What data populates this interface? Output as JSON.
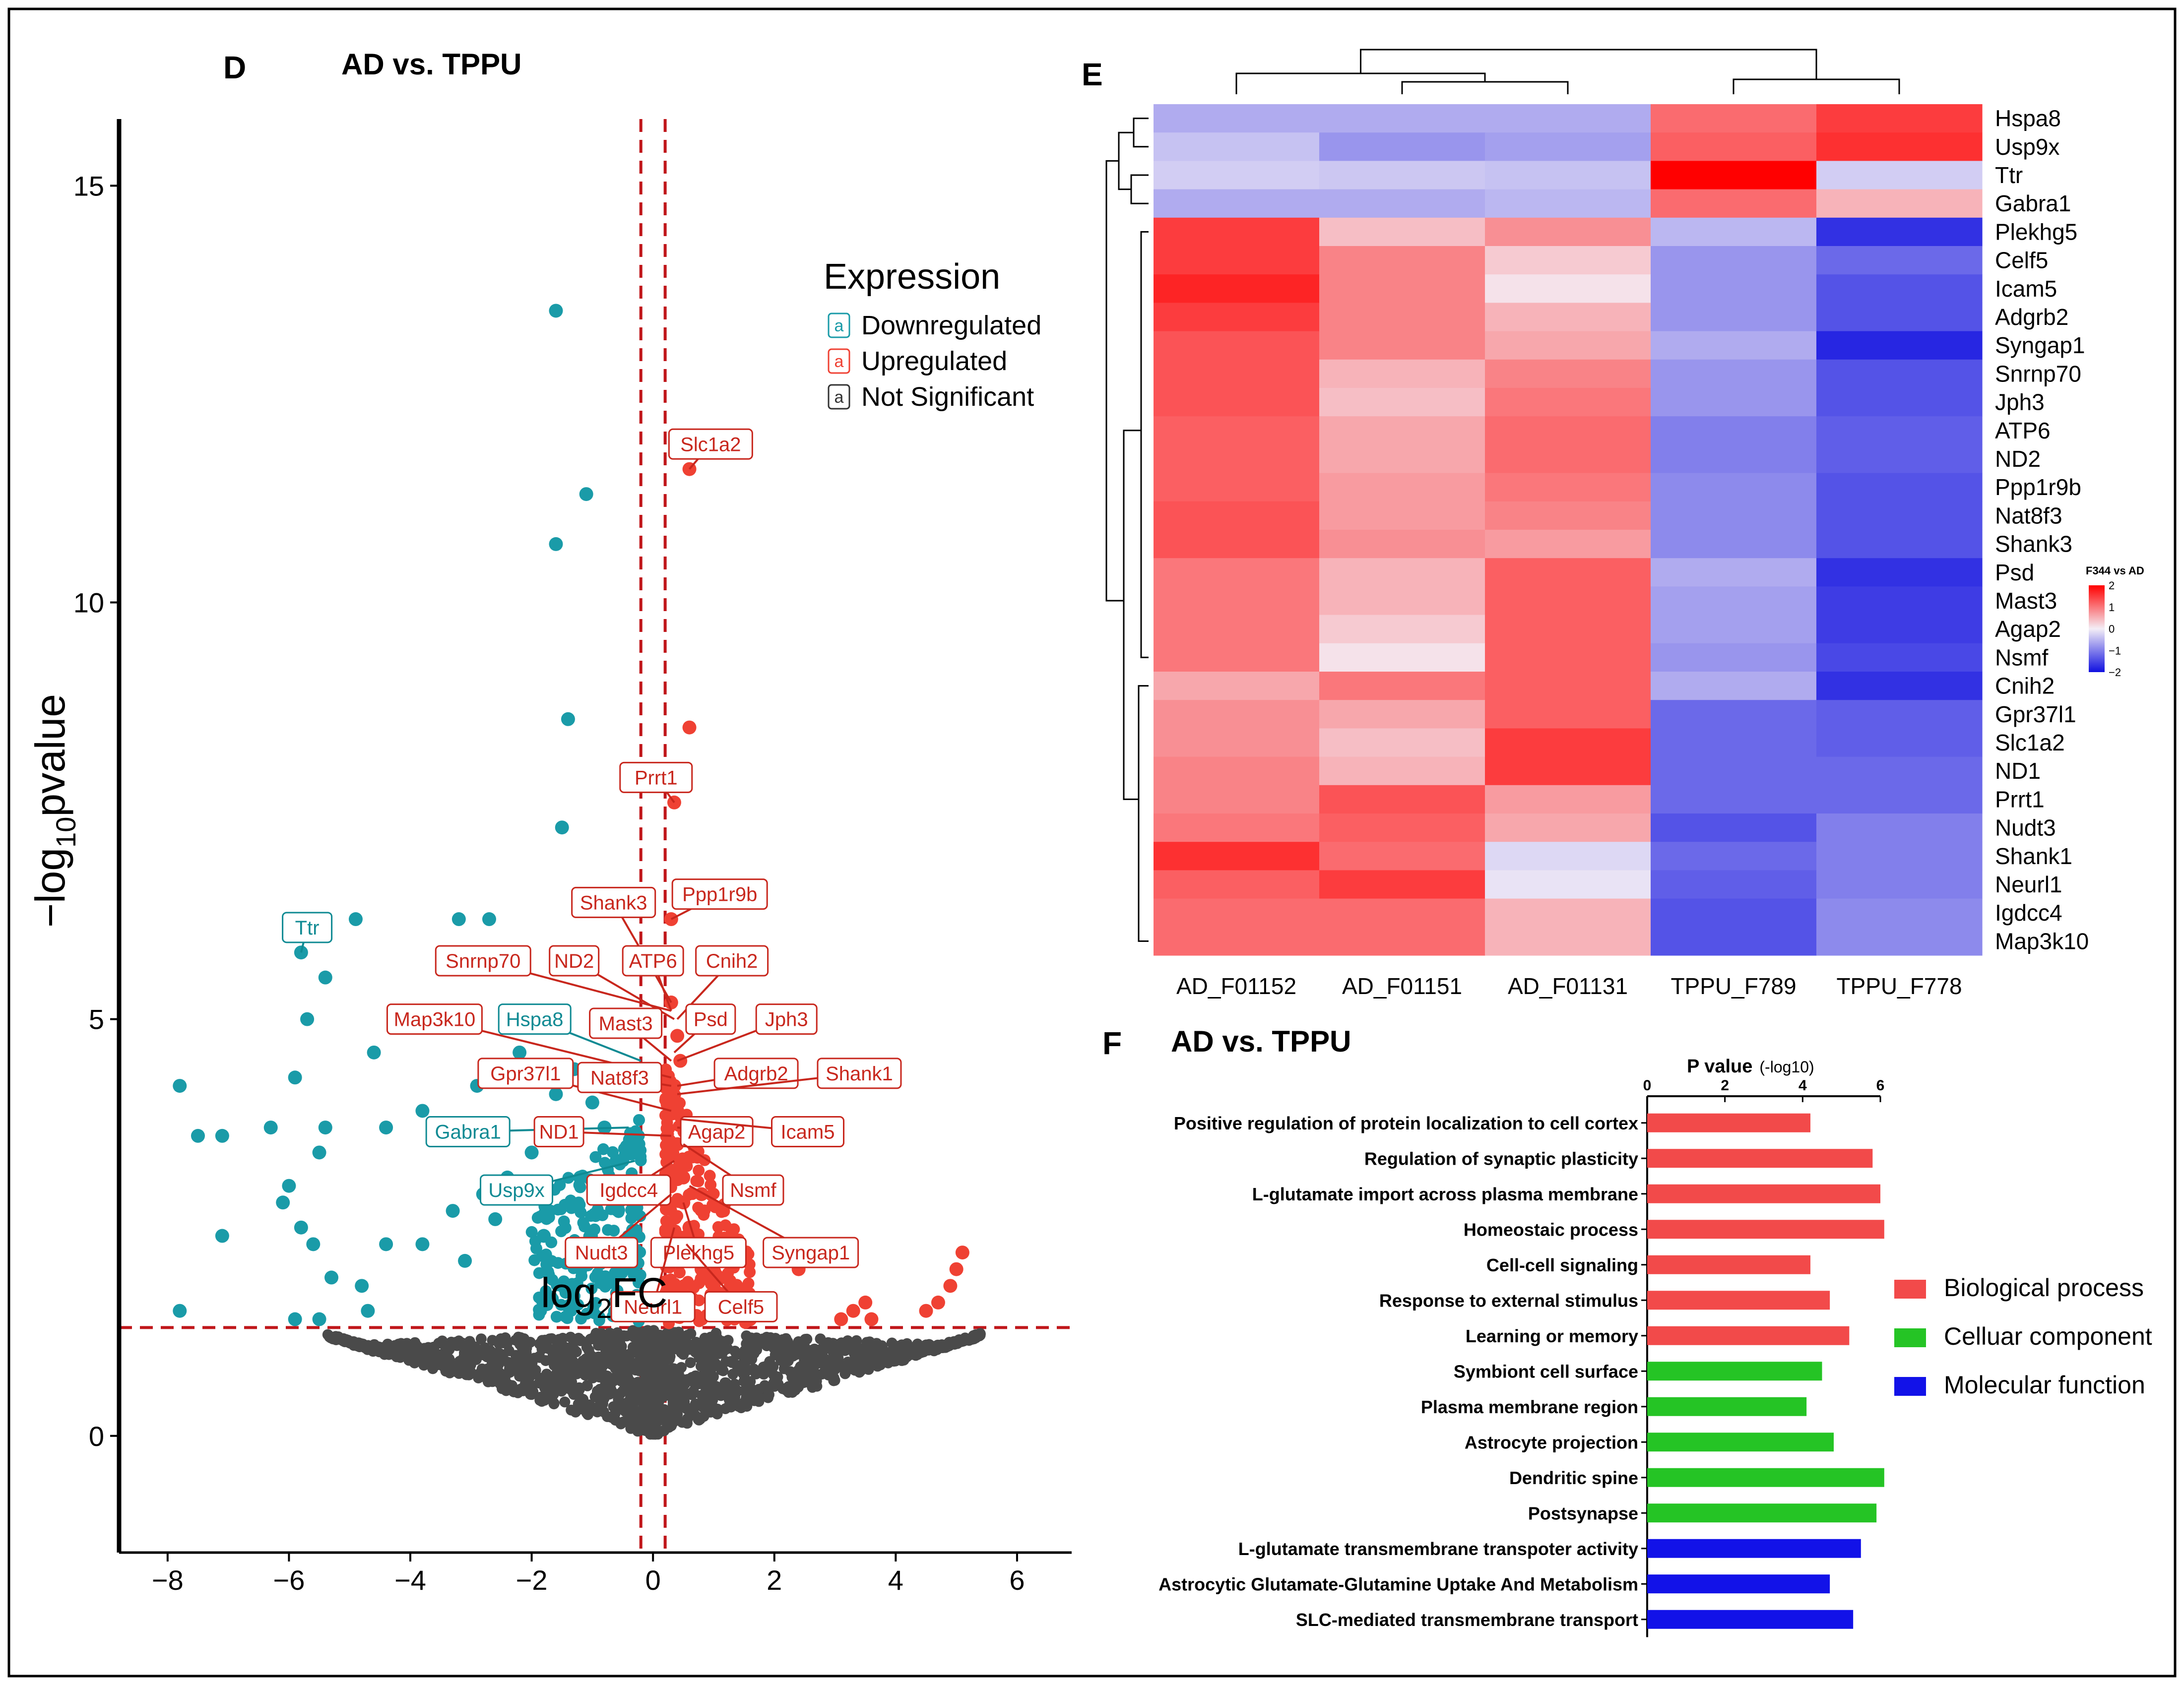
{
  "colors": {
    "down": "#1a9ba8",
    "up": "#ef4133",
    "ns": "#4a4a4a",
    "label_up": "#c8271d",
    "label_down": "#0f8a93",
    "bp": "#f24a4a",
    "cc": "#25c425",
    "mf": "#1212e8",
    "heat_hi": "#ff0000",
    "heat_mid": "#f4eef6",
    "heat_lo": "#1010e0"
  },
  "chart_data": [
    {
      "panel": "D",
      "type": "scatter",
      "title": "AD vs. TPPU",
      "xlabel_main": "log",
      "xlabel_sub": "2",
      "xlabel_tail": "FC",
      "ylabel_head": "−log",
      "ylabel_sub": "10",
      "ylabel_tail": "pvalue",
      "xlim": [
        -8.8,
        6.9
      ],
      "ylim": [
        -1.4,
        15.8
      ],
      "xticks": [
        -8,
        -6,
        -4,
        -2,
        0,
        2,
        4,
        6
      ],
      "yticks": [
        0,
        5,
        10,
        15
      ],
      "x_tick_labels": [
        "−8",
        "−6",
        "−4",
        "−2",
        "0",
        "2",
        "4",
        "6"
      ],
      "y_tick_labels": [
        "0",
        "5",
        "10",
        "15"
      ],
      "vlines": [
        -0.2,
        0.2
      ],
      "hline": 1.3,
      "legend": {
        "title": "Expression",
        "key_glyph": "a",
        "items": [
          "Downregulated",
          "Upregulated",
          "Not Significant"
        ]
      },
      "down_points": [
        [
          -1.6,
          13.5
        ],
        [
          -1.6,
          10.7
        ],
        [
          -1.1,
          11.3
        ],
        [
          -1.4,
          8.6
        ],
        [
          -1.5,
          7.3
        ],
        [
          -5.8,
          5.8
        ],
        [
          -4.9,
          6.2
        ],
        [
          -5.7,
          5.0
        ],
        [
          -5.4,
          5.5
        ],
        [
          -3.2,
          6.2
        ],
        [
          -2.7,
          6.2
        ],
        [
          -4.6,
          4.6
        ],
        [
          -7.8,
          4.2
        ],
        [
          -7.5,
          3.6
        ],
        [
          -7.1,
          3.6
        ],
        [
          -6.3,
          3.7
        ],
        [
          -5.9,
          4.3
        ],
        [
          -5.4,
          3.7
        ],
        [
          -4.4,
          3.7
        ],
        [
          -3.8,
          3.9
        ],
        [
          -6.0,
          3.0
        ],
        [
          -5.5,
          3.4
        ],
        [
          -7.1,
          2.4
        ],
        [
          -6.1,
          2.8
        ],
        [
          -5.8,
          2.5
        ],
        [
          -5.6,
          2.3
        ],
        [
          -4.4,
          2.3
        ],
        [
          -3.8,
          2.3
        ],
        [
          -3.1,
          2.1
        ],
        [
          -5.3,
          1.9
        ],
        [
          -4.8,
          1.8
        ],
        [
          -5.9,
          1.4
        ],
        [
          -5.5,
          1.4
        ],
        [
          -4.7,
          1.5
        ],
        [
          -7.8,
          1.5
        ],
        [
          -3.3,
          2.7
        ],
        [
          -2.8,
          2.9
        ],
        [
          -2.4,
          3.1
        ],
        [
          -2.0,
          3.4
        ],
        [
          -1.6,
          4.1
        ],
        [
          -1.3,
          4.4
        ],
        [
          -1.0,
          4.0
        ],
        [
          -0.8,
          3.7
        ],
        [
          -0.6,
          3.3
        ],
        [
          -1.2,
          3.1
        ],
        [
          -2.2,
          4.6
        ],
        [
          -3.5,
          5.0
        ],
        [
          -2.9,
          4.2
        ],
        [
          -1.8,
          2.4
        ],
        [
          -2.6,
          2.6
        ]
      ],
      "up_points": [
        [
          0.6,
          11.6
        ],
        [
          0.6,
          8.5
        ],
        [
          0.35,
          7.6
        ],
        [
          0.3,
          6.2
        ],
        [
          0.3,
          5.2
        ],
        [
          0.4,
          4.8
        ],
        [
          0.45,
          4.5
        ],
        [
          0.35,
          4.2
        ],
        [
          0.4,
          3.9
        ],
        [
          0.4,
          3.5
        ],
        [
          0.5,
          3.1
        ],
        [
          0.5,
          2.8
        ],
        [
          0.6,
          2.5
        ],
        [
          0.7,
          2.2
        ],
        [
          0.8,
          2.0
        ],
        [
          1.0,
          1.8
        ],
        [
          1.1,
          1.6
        ],
        [
          1.3,
          1.5
        ],
        [
          1.6,
          1.4
        ],
        [
          2.4,
          2.0
        ],
        [
          3.1,
          1.4
        ],
        [
          3.3,
          1.5
        ],
        [
          3.5,
          1.6
        ],
        [
          3.6,
          1.4
        ],
        [
          4.5,
          1.5
        ],
        [
          4.7,
          1.6
        ],
        [
          4.9,
          1.8
        ],
        [
          5.0,
          2.0
        ],
        [
          5.1,
          2.2
        ],
        [
          0.8,
          2.9
        ]
      ],
      "labels": [
        {
          "text": "Slc1a2",
          "group": "up",
          "x": 0.95,
          "y": 11.9,
          "tx": 0.6,
          "ty": 11.6
        },
        {
          "text": "Prrt1",
          "group": "up",
          "x": 0.05,
          "y": 7.9,
          "tx": 0.35,
          "ty": 7.6
        },
        {
          "text": "Ppp1r9b",
          "group": "up",
          "x": 1.1,
          "y": 6.5,
          "tx": 0.3,
          "ty": 6.2
        },
        {
          "text": "Shank3",
          "group": "up",
          "x": -0.65,
          "y": 6.4,
          "tx": 0.3,
          "ty": 5.2
        },
        {
          "text": "Ttr",
          "group": "down",
          "x": -5.7,
          "y": 6.1,
          "tx": -5.8,
          "ty": 5.8
        },
        {
          "text": "Snrnp70",
          "group": "up",
          "x": -2.8,
          "y": 5.7,
          "tx": 0.3,
          "ty": 5.1
        },
        {
          "text": "ND2",
          "group": "up",
          "x": -1.3,
          "y": 5.7,
          "tx": 0.35,
          "ty": 5.0
        },
        {
          "text": "ATP6",
          "group": "up",
          "x": 0.0,
          "y": 5.7,
          "tx": 0.3,
          "ty": 5.1
        },
        {
          "text": "Cnih2",
          "group": "up",
          "x": 1.3,
          "y": 5.7,
          "tx": 0.4,
          "ty": 5.0
        },
        {
          "text": "Map3k10",
          "group": "up",
          "x": -3.6,
          "y": 5.0,
          "tx": 0.3,
          "ty": 4.3
        },
        {
          "text": "Hspa8",
          "group": "down",
          "x": -1.95,
          "y": 5.0,
          "tx": -0.2,
          "ty": 4.5
        },
        {
          "text": "Mast3",
          "group": "up",
          "x": -0.45,
          "y": 4.95,
          "tx": 0.3,
          "ty": 4.5
        },
        {
          "text": "Psd",
          "group": "up",
          "x": 0.95,
          "y": 5.0,
          "tx": 0.35,
          "ty": 4.6
        },
        {
          "text": "Jph3",
          "group": "up",
          "x": 2.2,
          "y": 5.0,
          "tx": 0.4,
          "ty": 4.5
        },
        {
          "text": "Gpr37l1",
          "group": "up",
          "x": -2.1,
          "y": 4.35,
          "tx": 0.3,
          "ty": 3.9
        },
        {
          "text": "Nat8f3",
          "group": "up",
          "x": -0.55,
          "y": 4.3,
          "tx": 0.3,
          "ty": 4.2
        },
        {
          "text": "Adgrb2",
          "group": "up",
          "x": 1.7,
          "y": 4.35,
          "tx": 0.4,
          "ty": 4.2
        },
        {
          "text": "Shank1",
          "group": "up",
          "x": 3.4,
          "y": 4.35,
          "tx": 0.4,
          "ty": 4.1
        },
        {
          "text": "Gabra1",
          "group": "down",
          "x": -3.05,
          "y": 3.65,
          "tx": -0.4,
          "ty": 3.7
        },
        {
          "text": "ND1",
          "group": "up",
          "x": -1.55,
          "y": 3.65,
          "tx": 0.3,
          "ty": 3.6
        },
        {
          "text": "Agap2",
          "group": "up",
          "x": 1.05,
          "y": 3.65,
          "tx": 0.4,
          "ty": 3.7
        },
        {
          "text": "Icam5",
          "group": "up",
          "x": 2.55,
          "y": 3.65,
          "tx": 0.45,
          "ty": 3.8
        },
        {
          "text": "Usp9x",
          "group": "down",
          "x": -2.25,
          "y": 2.95,
          "tx": -0.3,
          "ty": 3.3
        },
        {
          "text": "Igdcc4",
          "group": "up",
          "x": -0.4,
          "y": 2.95,
          "tx": 0.35,
          "ty": 3.3
        },
        {
          "text": "Nsmf",
          "group": "up",
          "x": 1.65,
          "y": 2.95,
          "tx": 0.5,
          "ty": 3.5
        },
        {
          "text": "Nudt3",
          "group": "up",
          "x": -0.85,
          "y": 2.2,
          "tx": 0.3,
          "ty": 2.9
        },
        {
          "text": "Plekhg5",
          "group": "up",
          "x": 0.75,
          "y": 2.2,
          "tx": 0.5,
          "ty": 2.8
        },
        {
          "text": "Syngap1",
          "group": "up",
          "x": 2.6,
          "y": 2.2,
          "tx": 0.6,
          "ty": 3.0
        },
        {
          "text": "Neurl1",
          "group": "up",
          "x": 0.0,
          "y": 1.55,
          "tx": 0.35,
          "ty": 2.5
        },
        {
          "text": "Celf5",
          "group": "up",
          "x": 1.45,
          "y": 1.55,
          "tx": 0.55,
          "ty": 2.3
        }
      ]
    },
    {
      "panel": "E",
      "type": "heatmap",
      "columns": [
        "AD_F01152",
        "AD_F01151",
        "AD_F01131",
        "TPPU_F789",
        "TPPU_F778"
      ],
      "rows": [
        "Hspa8",
        "Usp9x",
        "Ttr",
        "Gabra1",
        "Plekhg5",
        "Celf5",
        "Icam5",
        "Adgrb2",
        "Syngap1",
        "Snrnp70",
        "Jph3",
        "ATP6",
        "ND2",
        "Ppp1r9b",
        "Nat8f3",
        "Shank3",
        "Psd",
        "Mast3",
        "Agap2",
        "Nsmf",
        "Cnih2",
        "Gpr37l1",
        "Slc1a2",
        "ND1",
        "Prrt1",
        "Nudt3",
        "Shank1",
        "Neurl1",
        "Igdcc4",
        "Map3k10"
      ],
      "values": [
        [
          -0.6,
          -0.6,
          -0.6,
          1.1,
          1.5
        ],
        [
          -0.4,
          -0.8,
          -0.7,
          1.2,
          1.6
        ],
        [
          -0.3,
          -0.35,
          -0.4,
          2.0,
          -0.3
        ],
        [
          -0.6,
          -0.6,
          -0.5,
          1.1,
          0.5
        ],
        [
          1.5,
          0.4,
          0.8,
          -0.5,
          -1.7
        ],
        [
          1.5,
          0.9,
          0.3,
          -0.8,
          -1.2
        ],
        [
          1.7,
          0.9,
          0.1,
          -0.8,
          -1.4
        ],
        [
          1.5,
          0.9,
          0.5,
          -0.8,
          -1.4
        ],
        [
          1.3,
          0.9,
          0.6,
          -0.6,
          -1.8
        ],
        [
          1.3,
          0.5,
          0.9,
          -0.8,
          -1.4
        ],
        [
          1.3,
          0.4,
          1.0,
          -0.8,
          -1.4
        ],
        [
          1.2,
          0.6,
          1.1,
          -1.0,
          -1.3
        ],
        [
          1.2,
          0.6,
          1.1,
          -1.0,
          -1.3
        ],
        [
          1.2,
          0.7,
          1.0,
          -0.9,
          -1.4
        ],
        [
          1.3,
          0.7,
          0.9,
          -0.9,
          -1.4
        ],
        [
          1.3,
          0.8,
          0.7,
          -0.9,
          -1.4
        ],
        [
          1.0,
          0.5,
          1.2,
          -0.6,
          -1.7
        ],
        [
          1.0,
          0.5,
          1.2,
          -0.7,
          -1.6
        ],
        [
          1.0,
          0.3,
          1.2,
          -0.7,
          -1.6
        ],
        [
          1.0,
          0.1,
          1.2,
          -0.8,
          -1.5
        ],
        [
          0.6,
          1.0,
          1.2,
          -0.6,
          -1.7
        ],
        [
          0.8,
          0.6,
          1.2,
          -1.2,
          -1.3
        ],
        [
          0.8,
          0.4,
          1.5,
          -1.2,
          -1.3
        ],
        [
          0.9,
          0.5,
          1.5,
          -1.2,
          -1.2
        ],
        [
          0.9,
          1.3,
          0.7,
          -1.2,
          -1.2
        ],
        [
          1.0,
          1.2,
          0.6,
          -1.4,
          -1.0
        ],
        [
          1.6,
          1.1,
          -0.2,
          -1.2,
          -1.0
        ],
        [
          1.2,
          1.5,
          -0.1,
          -1.3,
          -1.0
        ],
        [
          1.1,
          1.1,
          0.5,
          -1.4,
          -0.9
        ],
        [
          1.1,
          1.1,
          0.5,
          -1.4,
          -0.9
        ]
      ],
      "colorbar": {
        "title": "F344 vs AD",
        "range": [
          -2,
          2
        ],
        "ticks": [
          "2",
          "1",
          "0",
          "−1",
          "−2"
        ]
      }
    },
    {
      "panel": "F",
      "type": "bar",
      "orientation": "horizontal",
      "title": "AD vs. TPPU",
      "axis_title_main": "P value",
      "axis_title_sub": "(-log10)",
      "xlim": [
        0,
        6
      ],
      "xticks": [
        "0",
        "2",
        "4",
        "6"
      ],
      "categories": [
        "Positive regulation of protein localization to cell cortex",
        "Regulation of synaptic plasticity",
        "L-glutamate import across plasma membrane",
        "Homeostaic process",
        "Cell-cell signaling",
        "Response to external stimulus",
        "Learning or memory",
        "Symbiont cell surface",
        "Plasma membrane region",
        "Astrocyte projection",
        "Dendritic spine",
        "Postsynapse",
        "L-glutamate transmembrane transpoter activity",
        "Astrocytic Glutamate-Glutamine Uptake And Metabolism",
        "SLC-mediated transmembrane transport"
      ],
      "values": [
        4.2,
        5.8,
        6.0,
        6.1,
        4.2,
        4.7,
        5.2,
        4.5,
        4.1,
        4.8,
        6.1,
        5.9,
        5.5,
        4.7,
        5.3
      ],
      "groups": [
        "bp",
        "bp",
        "bp",
        "bp",
        "bp",
        "bp",
        "bp",
        "cc",
        "cc",
        "cc",
        "cc",
        "cc",
        "mf",
        "mf",
        "mf"
      ],
      "legend": [
        "Biological process",
        "Celluar component",
        "Molecular function"
      ]
    }
  ],
  "panel_letters": {
    "d": "D",
    "e": "E",
    "f": "F"
  }
}
